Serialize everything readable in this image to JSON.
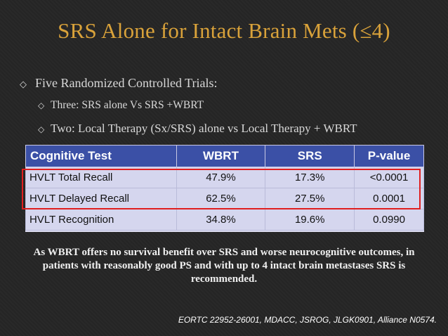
{
  "slide": {
    "title": "SRS Alone for Intact Brain Mets (≤4)",
    "bullets": [
      {
        "text": "Five Randomized Controlled Trials:",
        "icon": "diamond-bullet-icon"
      },
      {
        "text": "Three: SRS alone Vs SRS +WBRT",
        "icon": "diamond-bullet-icon"
      },
      {
        "text": "Two:  Local Therapy (Sx/SRS) alone vs Local Therapy + WBRT",
        "icon": "diamond-bullet-icon"
      }
    ]
  },
  "table": {
    "headers": [
      "Cognitive Test",
      "WBRT",
      "SRS",
      "P-value"
    ],
    "rows": [
      [
        "HVLT Total Recall",
        "47.9%",
        "17.3%",
        "<0.0001"
      ],
      [
        "HVLT Delayed Recall",
        "62.5%",
        "27.5%",
        "0.0001"
      ],
      [
        "HVLT Recognition",
        "34.8%",
        "19.6%",
        "0.0990"
      ]
    ],
    "header_color": "#3b50a6",
    "highlight_color": "#e01f1f"
  },
  "conclusion": {
    "line1": "As WBRT offers no survival benefit over SRS and worse neurocognitive outcomes, in",
    "line2": "patients with reasonably good PS and with up to 4 intact brain metastases SRS is",
    "line3": "recommended."
  },
  "references": "EORTC 22952-26001, MDACC, JSROG, JLGK0901, Alliance N0574."
}
